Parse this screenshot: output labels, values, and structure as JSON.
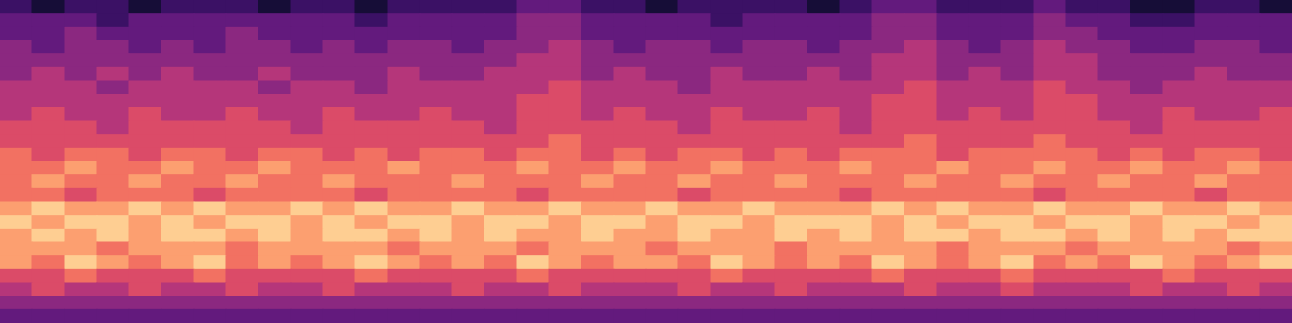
{
  "chart_data": {
    "type": "heatmap",
    "tick_labels": false,
    "value_range": [
      0,
      10
    ],
    "cells": [
      [
        2,
        1,
        2,
        2,
        1,
        2,
        2,
        2,
        1,
        2,
        2,
        1,
        2,
        2,
        2,
        2,
        3,
        3,
        2,
        2,
        1,
        2,
        2,
        2,
        2,
        1,
        2,
        3,
        3,
        2,
        2,
        2,
        3,
        2,
        2,
        1,
        1,
        2,
        2,
        1
      ],
      [
        3,
        3,
        3,
        2,
        3,
        3,
        3,
        3,
        3,
        3,
        3,
        2,
        3,
        3,
        3,
        3,
        4,
        4,
        3,
        3,
        3,
        3,
        2,
        3,
        3,
        3,
        3,
        4,
        4,
        3,
        3,
        3,
        4,
        3,
        3,
        2,
        2,
        3,
        3,
        3
      ],
      [
        3,
        3,
        4,
        3,
        3,
        3,
        3,
        4,
        3,
        3,
        3,
        3,
        3,
        3,
        3,
        3,
        4,
        4,
        3,
        3,
        3,
        3,
        3,
        3,
        3,
        3,
        3,
        4,
        4,
        3,
        3,
        3,
        4,
        4,
        3,
        3,
        3,
        3,
        3,
        3
      ],
      [
        4,
        3,
        4,
        4,
        3,
        4,
        3,
        4,
        4,
        3,
        4,
        3,
        4,
        4,
        3,
        4,
        4,
        5,
        4,
        3,
        4,
        4,
        3,
        4,
        4,
        3,
        4,
        4,
        5,
        4,
        3,
        4,
        5,
        4,
        4,
        3,
        3,
        4,
        4,
        3
      ],
      [
        4,
        4,
        4,
        4,
        4,
        4,
        4,
        4,
        4,
        4,
        4,
        4,
        4,
        4,
        4,
        4,
        5,
        5,
        4,
        4,
        4,
        4,
        4,
        4,
        4,
        4,
        4,
        5,
        5,
        4,
        4,
        4,
        5,
        5,
        4,
        4,
        4,
        4,
        4,
        4
      ],
      [
        4,
        5,
        4,
        5,
        4,
        5,
        4,
        4,
        5,
        4,
        4,
        4,
        5,
        4,
        4,
        5,
        5,
        5,
        4,
        5,
        4,
        4,
        5,
        4,
        4,
        5,
        4,
        5,
        5,
        4,
        5,
        4,
        5,
        5,
        4,
        4,
        4,
        5,
        4,
        4
      ],
      [
        5,
        5,
        5,
        4,
        5,
        5,
        5,
        5,
        4,
        5,
        5,
        4,
        5,
        5,
        5,
        5,
        5,
        6,
        5,
        5,
        5,
        4,
        5,
        5,
        5,
        5,
        5,
        5,
        6,
        5,
        5,
        5,
        6,
        5,
        5,
        4,
        5,
        5,
        5,
        5
      ],
      [
        5,
        5,
        5,
        5,
        5,
        5,
        5,
        5,
        5,
        5,
        5,
        5,
        5,
        5,
        5,
        5,
        6,
        6,
        5,
        5,
        5,
        5,
        5,
        5,
        5,
        5,
        5,
        6,
        6,
        5,
        5,
        5,
        6,
        6,
        5,
        5,
        5,
        5,
        5,
        5
      ],
      [
        5,
        6,
        5,
        5,
        6,
        5,
        5,
        6,
        5,
        5,
        6,
        5,
        5,
        6,
        5,
        5,
        6,
        6,
        5,
        6,
        5,
        5,
        6,
        5,
        5,
        6,
        5,
        6,
        6,
        5,
        6,
        5,
        6,
        6,
        5,
        5,
        6,
        5,
        5,
        6
      ],
      [
        6,
        6,
        6,
        5,
        6,
        6,
        6,
        6,
        6,
        5,
        6,
        6,
        6,
        6,
        6,
        5,
        6,
        6,
        6,
        6,
        6,
        5,
        6,
        6,
        6,
        6,
        5,
        6,
        6,
        6,
        6,
        6,
        6,
        6,
        6,
        5,
        6,
        6,
        6,
        6
      ],
      [
        6,
        6,
        6,
        6,
        6,
        6,
        6,
        6,
        6,
        6,
        6,
        6,
        6,
        6,
        6,
        6,
        6,
        7,
        6,
        6,
        6,
        6,
        6,
        6,
        6,
        6,
        6,
        6,
        7,
        6,
        6,
        6,
        7,
        6,
        6,
        6,
        6,
        6,
        6,
        6
      ],
      [
        7,
        6,
        7,
        7,
        6,
        7,
        7,
        6,
        7,
        7,
        6,
        7,
        6,
        7,
        7,
        6,
        7,
        7,
        6,
        7,
        6,
        7,
        7,
        6,
        7,
        6,
        7,
        7,
        7,
        6,
        7,
        7,
        7,
        7,
        6,
        7,
        6,
        7,
        7,
        6
      ],
      [
        7,
        7,
        8,
        7,
        7,
        8,
        7,
        7,
        8,
        7,
        7,
        7,
        8,
        7,
        7,
        7,
        8,
        7,
        7,
        8,
        7,
        7,
        8,
        7,
        7,
        7,
        8,
        7,
        7,
        8,
        7,
        7,
        8,
        7,
        7,
        8,
        7,
        7,
        8,
        7
      ],
      [
        7,
        8,
        7,
        7,
        8,
        7,
        7,
        8,
        7,
        7,
        8,
        7,
        7,
        7,
        8,
        7,
        7,
        7,
        8,
        7,
        7,
        8,
        7,
        7,
        8,
        7,
        7,
        7,
        8,
        7,
        7,
        8,
        7,
        7,
        8,
        7,
        7,
        8,
        7,
        7
      ],
      [
        7,
        7,
        6,
        7,
        7,
        7,
        6,
        7,
        7,
        7,
        7,
        6,
        7,
        7,
        7,
        7,
        6,
        7,
        7,
        7,
        7,
        6,
        7,
        7,
        7,
        7,
        6,
        7,
        7,
        7,
        7,
        7,
        6,
        7,
        7,
        7,
        7,
        6,
        7,
        7
      ],
      [
        8,
        9,
        8,
        8,
        9,
        8,
        9,
        8,
        8,
        9,
        8,
        9,
        8,
        8,
        9,
        8,
        8,
        9,
        8,
        8,
        9,
        8,
        8,
        9,
        8,
        8,
        8,
        9,
        8,
        9,
        8,
        8,
        9,
        8,
        8,
        9,
        8,
        8,
        9,
        8
      ],
      [
        9,
        8,
        9,
        9,
        8,
        9,
        8,
        9,
        9,
        8,
        9,
        8,
        9,
        9,
        8,
        9,
        9,
        8,
        9,
        9,
        8,
        9,
        9,
        8,
        9,
        9,
        9,
        8,
        9,
        8,
        9,
        9,
        8,
        9,
        9,
        8,
        9,
        9,
        8,
        9
      ],
      [
        8,
        9,
        8,
        9,
        8,
        9,
        9,
        8,
        9,
        8,
        9,
        9,
        8,
        9,
        8,
        9,
        8,
        8,
        9,
        8,
        8,
        9,
        8,
        8,
        9,
        8,
        9,
        8,
        9,
        9,
        8,
        9,
        9,
        8,
        9,
        8,
        9,
        8,
        9,
        9
      ],
      [
        8,
        8,
        8,
        7,
        8,
        8,
        8,
        7,
        8,
        8,
        8,
        8,
        7,
        8,
        8,
        8,
        7,
        8,
        8,
        8,
        7,
        8,
        8,
        8,
        7,
        8,
        8,
        8,
        8,
        7,
        8,
        8,
        8,
        7,
        8,
        8,
        8,
        8,
        7,
        8
      ],
      [
        8,
        7,
        9,
        8,
        7,
        8,
        9,
        7,
        8,
        7,
        8,
        9,
        8,
        7,
        8,
        7,
        9,
        8,
        7,
        8,
        8,
        7,
        9,
        8,
        7,
        8,
        7,
        9,
        8,
        7,
        8,
        9,
        7,
        8,
        7,
        9,
        8,
        7,
        8,
        9
      ],
      [
        6,
        6,
        7,
        6,
        6,
        6,
        7,
        6,
        6,
        6,
        6,
        7,
        6,
        6,
        6,
        6,
        7,
        6,
        6,
        6,
        6,
        6,
        7,
        6,
        6,
        6,
        6,
        7,
        6,
        6,
        6,
        7,
        6,
        6,
        6,
        6,
        7,
        6,
        6,
        6
      ],
      [
        5,
        6,
        5,
        5,
        6,
        5,
        5,
        6,
        5,
        5,
        6,
        5,
        5,
        5,
        6,
        5,
        5,
        6,
        5,
        5,
        5,
        6,
        5,
        5,
        6,
        5,
        5,
        5,
        6,
        5,
        5,
        6,
        5,
        5,
        5,
        6,
        5,
        5,
        6,
        5
      ],
      [
        4,
        4,
        4,
        4,
        4,
        4,
        4,
        4,
        4,
        4,
        4,
        4,
        4,
        4,
        4,
        4,
        4,
        4,
        4,
        4,
        4,
        4,
        4,
        4,
        4,
        4,
        4,
        4,
        4,
        4,
        4,
        4,
        4,
        4,
        4,
        4,
        4,
        4,
        4,
        4
      ],
      [
        3,
        3,
        3,
        3,
        3,
        3,
        3,
        3,
        3,
        3,
        3,
        3,
        3,
        3,
        3,
        3,
        3,
        3,
        3,
        3,
        3,
        3,
        3,
        3,
        3,
        3,
        3,
        3,
        3,
        3,
        3,
        3,
        3,
        3,
        3,
        3,
        3,
        3,
        3,
        3
      ]
    ]
  }
}
